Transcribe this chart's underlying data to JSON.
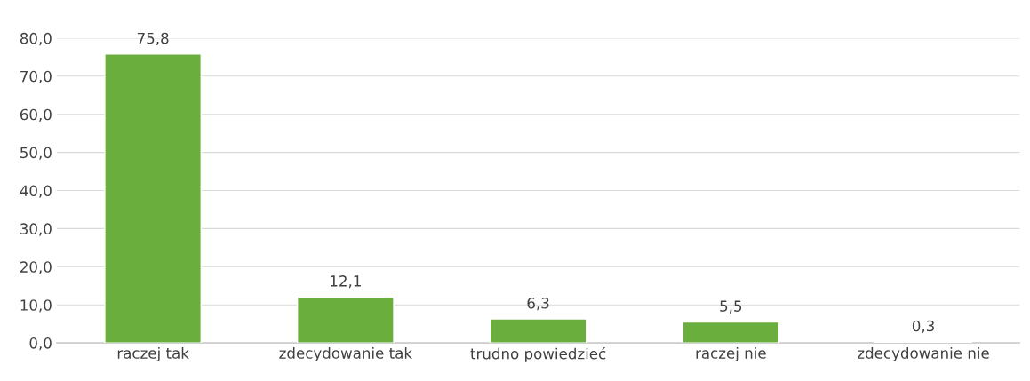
{
  "chart_data": {
    "type": "bar",
    "categories": [
      "raczej tak",
      "zdecydowanie tak",
      "trudno powiedzieć",
      "raczej nie",
      "zdecydowanie nie"
    ],
    "values": [
      75.8,
      12.1,
      6.3,
      5.5,
      0.3
    ],
    "value_labels": [
      "75,8",
      "12,1",
      "6,3",
      "5,5",
      "0,3"
    ],
    "color": "#6aae3e",
    "ylim": [
      0,
      80
    ],
    "yticks": [
      {
        "value": 0,
        "label": "0,0"
      },
      {
        "value": 10,
        "label": "10,0"
      },
      {
        "value": 20,
        "label": "20,0"
      },
      {
        "value": 30,
        "label": "30,0"
      },
      {
        "value": 40,
        "label": "40,0"
      },
      {
        "value": 50,
        "label": "50,0"
      },
      {
        "value": 60,
        "label": "60,0"
      },
      {
        "value": 70,
        "label": "70,0"
      },
      {
        "value": 80,
        "label": "80,0"
      }
    ],
    "grid": "y"
  }
}
